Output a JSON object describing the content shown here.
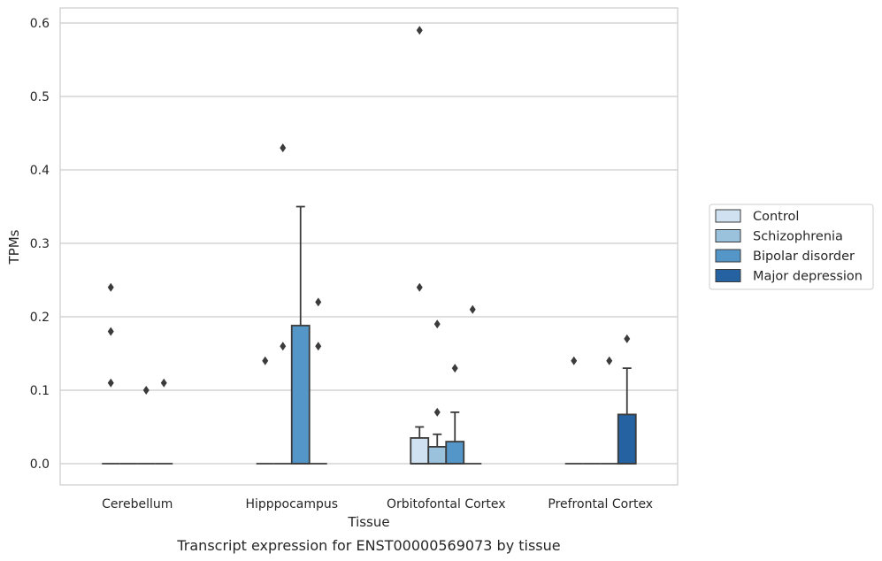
{
  "chart_data": {
    "type": "box",
    "xlabel": "Tissue",
    "ylabel": "TPMs",
    "caption": "Transcript expression for ENST00000569073 by tissue",
    "ylim": [
      -0.03,
      0.62
    ],
    "yticks": [
      0.0,
      0.1,
      0.2,
      0.3,
      0.4,
      0.5,
      0.6
    ],
    "ytick_labels": [
      "0.0",
      "0.1",
      "0.2",
      "0.3",
      "0.4",
      "0.5",
      "0.6"
    ],
    "grid": true,
    "legend_position": "right",
    "categories": [
      "Cerebellum",
      "Hipppocampus",
      "Orbitofontal Cortex",
      "Prefrontal Cortex"
    ],
    "series": [
      {
        "name": "Control",
        "color": "#d0e1f1",
        "boxes": [
          {
            "q1": 0,
            "median": 0,
            "q3": 0,
            "whisker_low": 0,
            "whisker_high": 0,
            "outliers": [
              0.24,
              0.18,
              0.11
            ]
          },
          {
            "q1": 0,
            "median": 0,
            "q3": 0,
            "whisker_low": 0,
            "whisker_high": 0,
            "outliers": [
              0.14
            ]
          },
          {
            "q1": 0,
            "median": 0,
            "q3": 0.035,
            "whisker_low": 0,
            "whisker_high": 0.05,
            "outliers": [
              0.59,
              0.24
            ]
          },
          {
            "q1": 0,
            "median": 0,
            "q3": 0,
            "whisker_low": 0,
            "whisker_high": 0,
            "outliers": [
              0.14
            ]
          }
        ]
      },
      {
        "name": "Schizophrenia",
        "color": "#9ac2dd",
        "boxes": [
          {
            "q1": 0,
            "median": 0,
            "q3": 0,
            "whisker_low": 0,
            "whisker_high": 0,
            "outliers": []
          },
          {
            "q1": 0,
            "median": 0,
            "q3": 0,
            "whisker_low": 0,
            "whisker_high": 0,
            "outliers": [
              0.43,
              0.16
            ]
          },
          {
            "q1": 0,
            "median": 0,
            "q3": 0.023,
            "whisker_low": 0,
            "whisker_high": 0.04,
            "outliers": [
              0.19,
              0.07
            ]
          },
          {
            "q1": 0,
            "median": 0,
            "q3": 0,
            "whisker_low": 0,
            "whisker_high": 0,
            "outliers": []
          }
        ]
      },
      {
        "name": "Bipolar disorder",
        "color": "#5496c7",
        "boxes": [
          {
            "q1": 0,
            "median": 0,
            "q3": 0,
            "whisker_low": 0,
            "whisker_high": 0,
            "outliers": [
              0.1
            ]
          },
          {
            "q1": 0,
            "median": 0,
            "q3": 0.188,
            "whisker_low": 0,
            "whisker_high": 0.35,
            "outliers": []
          },
          {
            "q1": 0,
            "median": 0,
            "q3": 0.03,
            "whisker_low": 0,
            "whisker_high": 0.07,
            "outliers": [
              0.13
            ]
          },
          {
            "q1": 0,
            "median": 0,
            "q3": 0,
            "whisker_low": 0,
            "whisker_high": 0,
            "outliers": [
              0.14
            ]
          }
        ]
      },
      {
        "name": "Major depression",
        "color": "#2462a1",
        "boxes": [
          {
            "q1": 0,
            "median": 0,
            "q3": 0,
            "whisker_low": 0,
            "whisker_high": 0,
            "outliers": [
              0.11
            ]
          },
          {
            "q1": 0,
            "median": 0,
            "q3": 0,
            "whisker_low": 0,
            "whisker_high": 0,
            "outliers": [
              0.22,
              0.16
            ]
          },
          {
            "q1": 0,
            "median": 0,
            "q3": 0,
            "whisker_low": 0,
            "whisker_high": 0,
            "outliers": [
              0.21
            ]
          },
          {
            "q1": 0,
            "median": 0,
            "q3": 0.067,
            "whisker_low": 0,
            "whisker_high": 0.13,
            "outliers": [
              0.17
            ]
          }
        ]
      }
    ]
  }
}
